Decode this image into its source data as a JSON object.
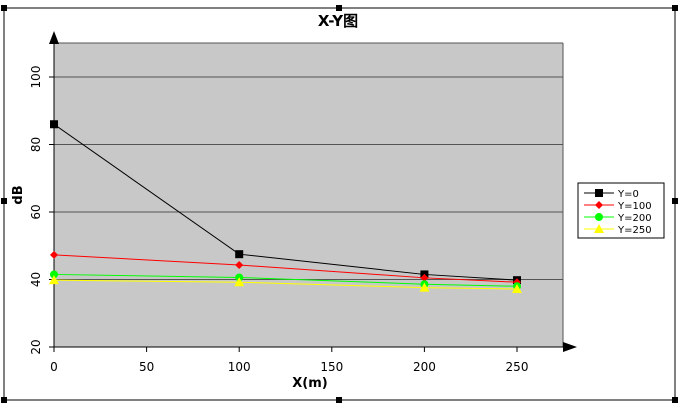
{
  "chart_data": {
    "type": "line",
    "title": "X-Y图",
    "xlabel": "X(m)",
    "ylabel": "dB",
    "x": [
      0,
      100,
      200,
      250
    ],
    "xlim": [
      0,
      275
    ],
    "ylim": [
      20,
      110
    ],
    "xticks": [
      0,
      50,
      100,
      150,
      200,
      250
    ],
    "yticks": [
      20,
      40,
      60,
      80,
      100
    ],
    "grid": true,
    "plot_background": "#c8c8c8",
    "legend_position": "right",
    "series": [
      {
        "name": "Y=0",
        "color": "#000000",
        "marker": "square",
        "values": [
          86,
          47.5,
          41.5,
          39.8
        ]
      },
      {
        "name": "Y=100",
        "color": "#ff0000",
        "marker": "diamond",
        "values": [
          47.3,
          44.3,
          40.5,
          39.2
        ]
      },
      {
        "name": "Y=200",
        "color": "#00ff00",
        "marker": "circle",
        "values": [
          41.5,
          40.6,
          38.6,
          38.0
        ]
      },
      {
        "name": "Y=250",
        "color": "#ffff00",
        "marker": "triangle",
        "values": [
          39.8,
          39.2,
          37.6,
          37.2
        ]
      }
    ]
  }
}
